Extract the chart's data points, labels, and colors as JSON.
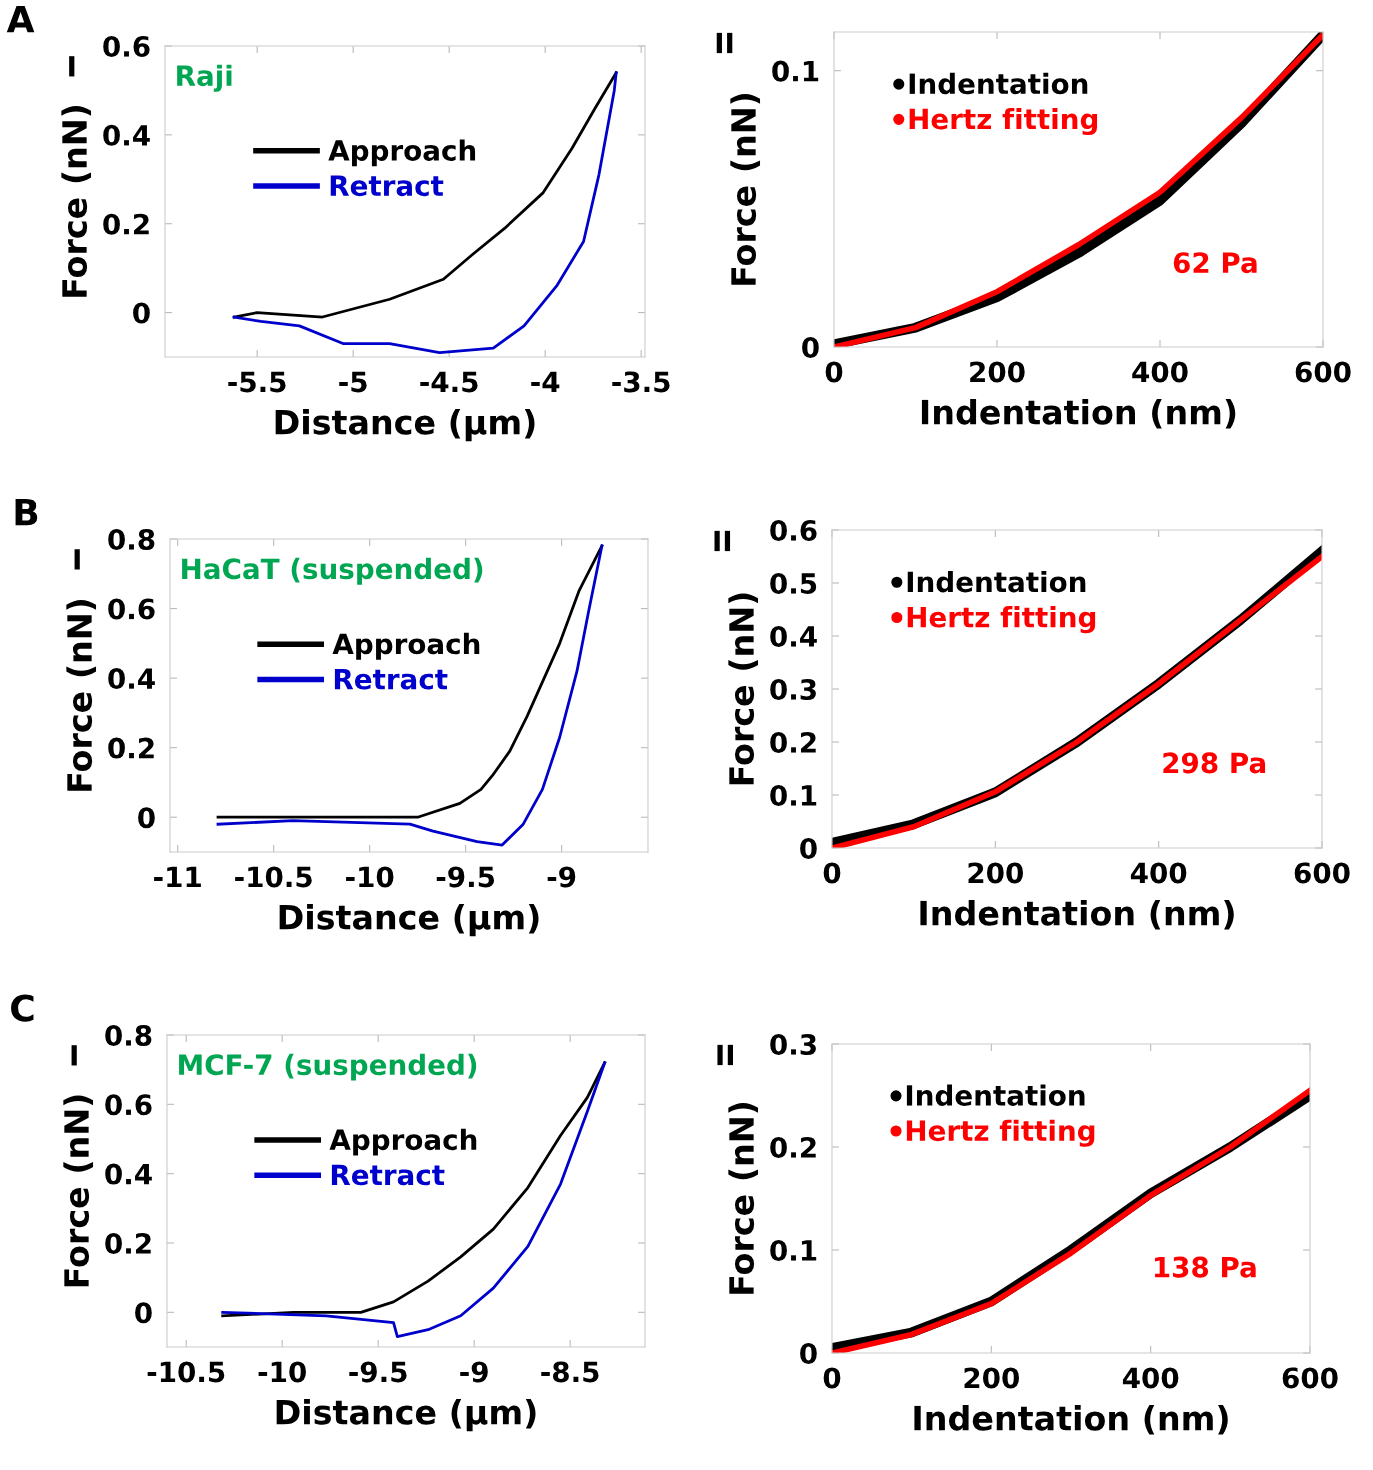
{
  "chart_data": [
    {
      "type": "line",
      "xlabel": "Distance (µm)",
      "ylabel": "Force (nN)",
      "annotations": [
        "A",
        "I",
        "Raji"
      ],
      "legend": "top",
      "grid": false,
      "xlim": [
        -5.98,
        -3.48
      ],
      "ylim": [
        -0.1,
        0.6
      ],
      "xticks": [
        -5.5,
        -5,
        -4.5,
        -4,
        -3.5
      ],
      "yticks": [
        0,
        0.2,
        0.4,
        0.6
      ],
      "series": [
        {
          "name": "Approach",
          "color": "#000000",
          "x": [
            -5.62,
            -5.5,
            -5.16,
            -4.81,
            -4.53,
            -4.38,
            -4.21,
            -4.01,
            -3.86,
            -3.74,
            -3.63
          ],
          "values": [
            -0.01,
            0.0,
            -0.01,
            0.03,
            0.075,
            0.13,
            0.19,
            0.27,
            0.37,
            0.46,
            0.54
          ]
        },
        {
          "name": "Retract",
          "color": "#0000cc",
          "x": [
            -5.62,
            -5.48,
            -5.28,
            -5.05,
            -4.81,
            -4.55,
            -4.27,
            -4.11,
            -3.94,
            -3.8,
            -3.72,
            -3.64,
            -3.63
          ],
          "values": [
            -0.01,
            -0.02,
            -0.03,
            -0.07,
            -0.07,
            -0.09,
            -0.08,
            -0.03,
            0.06,
            0.16,
            0.31,
            0.5,
            0.54
          ]
        }
      ]
    },
    {
      "type": "line",
      "xlabel": "Indentation (nm)",
      "ylabel": "Force (nN)",
      "annotations": [
        "II",
        "62 Pa"
      ],
      "legend": "top left",
      "grid": false,
      "xlim": [
        0,
        600
      ],
      "ylim": [
        0,
        0.114
      ],
      "xticks": [
        0,
        200,
        400,
        600
      ],
      "yticks": [
        0,
        0.1
      ],
      "series": [
        {
          "name": "Indentation",
          "color": "#000000",
          "x": [
            0,
            100,
            200,
            300,
            400,
            500,
            600
          ],
          "values": [
            0.001,
            0.007,
            0.018,
            0.034,
            0.053,
            0.081,
            0.113
          ]
        },
        {
          "name": "Hertz fitting",
          "color": "#ff0000",
          "x": [
            0,
            100,
            200,
            300,
            400,
            500,
            600
          ],
          "values": [
            0.0,
            0.007,
            0.02,
            0.037,
            0.056,
            0.083,
            0.113
          ]
        }
      ]
    },
    {
      "type": "line",
      "xlabel": "Distance (µm)",
      "ylabel": "Force (nN)",
      "annotations": [
        "B",
        "I",
        "HaCaT (suspended)"
      ],
      "legend": "top",
      "grid": false,
      "xlim": [
        -11.04,
        -8.55
      ],
      "ylim": [
        -0.1,
        0.8
      ],
      "xticks": [
        -11,
        -10.5,
        -10,
        -9.5,
        -9
      ],
      "yticks": [
        0,
        0.2,
        0.4,
        0.6,
        0.8
      ],
      "series": [
        {
          "name": "Approach",
          "color": "#000000",
          "x": [
            -10.79,
            -9.75,
            -9.53,
            -9.42,
            -9.36,
            -9.27,
            -9.18,
            -9.01,
            -8.91,
            -8.79
          ],
          "values": [
            0.0,
            0.0,
            0.04,
            0.08,
            0.12,
            0.19,
            0.29,
            0.5,
            0.65,
            0.78
          ]
        },
        {
          "name": "Retract",
          "color": "#0000cc",
          "x": [
            -10.79,
            -10.4,
            -9.79,
            -9.67,
            -9.44,
            -9.31,
            -9.2,
            -9.1,
            -9.01,
            -8.92,
            -8.86,
            -8.79
          ],
          "values": [
            -0.02,
            -0.01,
            -0.02,
            -0.04,
            -0.07,
            -0.08,
            -0.02,
            0.08,
            0.23,
            0.42,
            0.59,
            0.78
          ]
        }
      ]
    },
    {
      "type": "line",
      "xlabel": "Indentation (nm)",
      "ylabel": "Force (nN)",
      "annotations": [
        "II",
        "298 Pa"
      ],
      "legend": "top left",
      "grid": false,
      "xlim": [
        0,
        600
      ],
      "ylim": [
        0,
        0.6
      ],
      "xticks": [
        0,
        200,
        400,
        600
      ],
      "yticks": [
        0,
        0.1,
        0.2,
        0.3,
        0.4,
        0.5,
        0.6
      ],
      "series": [
        {
          "name": "Indentation",
          "color": "#000000",
          "x": [
            0,
            100,
            200,
            300,
            400,
            500,
            600
          ],
          "values": [
            0.01,
            0.045,
            0.105,
            0.2,
            0.31,
            0.43,
            0.56
          ]
        },
        {
          "name": "Hertz fitting",
          "color": "#ff0000",
          "x": [
            0,
            100,
            200,
            300,
            400,
            500,
            600
          ],
          "values": [
            0.0,
            0.04,
            0.106,
            0.2,
            0.31,
            0.43,
            0.55
          ]
        }
      ]
    },
    {
      "type": "line",
      "xlabel": "Distance (µm)",
      "ylabel": "Force (nN)",
      "annotations": [
        "C",
        "I",
        "MCF-7 (suspended)"
      ],
      "legend": "top",
      "grid": false,
      "xlim": [
        -10.6,
        -8.11
      ],
      "ylim": [
        -0.1,
        0.8
      ],
      "xticks": [
        -10.5,
        -10,
        -9.5,
        -9,
        -8.5
      ],
      "yticks": [
        0,
        0.2,
        0.4,
        0.6,
        0.8
      ],
      "series": [
        {
          "name": "Approach",
          "color": "#000000",
          "x": [
            -10.31,
            -9.94,
            -9.59,
            -9.42,
            -9.24,
            -9.07,
            -8.9,
            -8.72,
            -8.55,
            -8.41,
            -8.32
          ],
          "values": [
            -0.01,
            0.0,
            0.0,
            0.03,
            0.09,
            0.16,
            0.24,
            0.36,
            0.51,
            0.62,
            0.72
          ]
        },
        {
          "name": "Retract",
          "color": "#0000cc",
          "x": [
            -10.31,
            -9.77,
            -9.42,
            -9.4,
            -9.24,
            -9.07,
            -8.9,
            -8.72,
            -8.55,
            -8.41,
            -8.32
          ],
          "values": [
            0.0,
            -0.01,
            -0.03,
            -0.07,
            -0.05,
            -0.01,
            0.07,
            0.19,
            0.37,
            0.58,
            0.72
          ]
        }
      ]
    },
    {
      "type": "line",
      "xlabel": "Indentation (nm)",
      "ylabel": "Force (nN)",
      "annotations": [
        "II",
        "138 Pa"
      ],
      "legend": "top left",
      "grid": false,
      "xlim": [
        0,
        600
      ],
      "ylim": [
        0,
        0.3
      ],
      "xticks": [
        0,
        200,
        400,
        600
      ],
      "yticks": [
        0,
        0.1,
        0.2,
        0.3
      ],
      "series": [
        {
          "name": "Indentation",
          "color": "#000000",
          "x": [
            0,
            100,
            200,
            300,
            400,
            500,
            600
          ],
          "values": [
            0.005,
            0.02,
            0.05,
            0.1,
            0.155,
            0.2,
            0.25
          ]
        },
        {
          "name": "Hertz fitting",
          "color": "#ff0000",
          "x": [
            0,
            100,
            200,
            300,
            400,
            500,
            600
          ],
          "values": [
            0.0,
            0.018,
            0.048,
            0.097,
            0.153,
            0.2,
            0.255
          ]
        }
      ]
    }
  ]
}
